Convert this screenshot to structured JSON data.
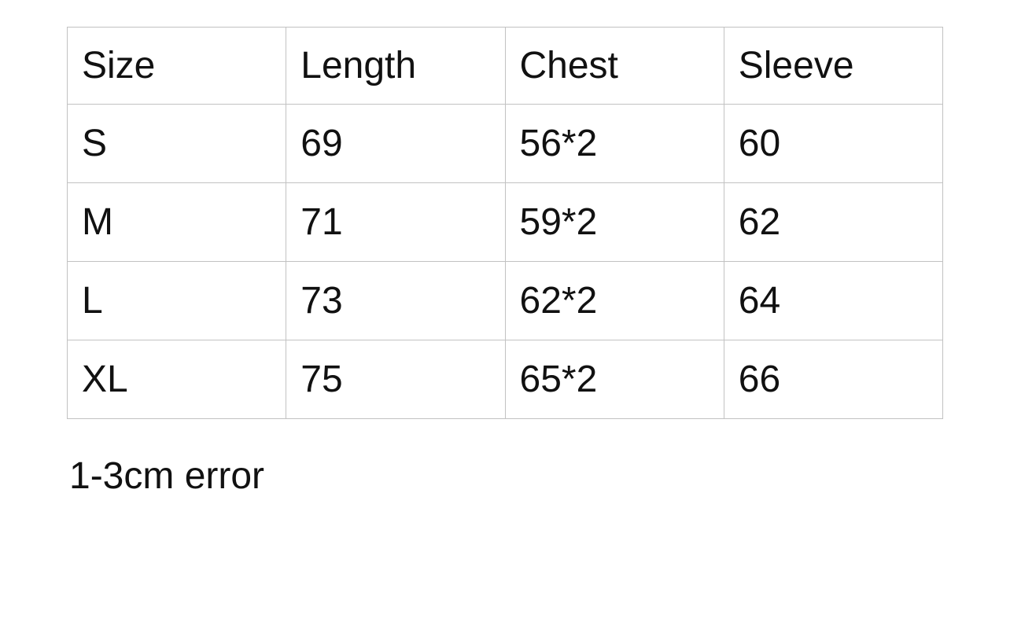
{
  "chart_data": {
    "type": "table",
    "title": "",
    "columns": [
      "Size",
      "Length",
      "Chest",
      "Sleeve"
    ],
    "rows": [
      [
        "S",
        "69",
        "56*2",
        "60"
      ],
      [
        "M",
        "71",
        "59*2",
        "62"
      ],
      [
        "L",
        "73",
        "62*2",
        "64"
      ],
      [
        "XL",
        "75",
        "65*2",
        "66"
      ]
    ]
  },
  "note": "1-3cm error",
  "colors": {
    "text": "#111111",
    "border": "#c2c2c2",
    "background": "#ffffff"
  }
}
